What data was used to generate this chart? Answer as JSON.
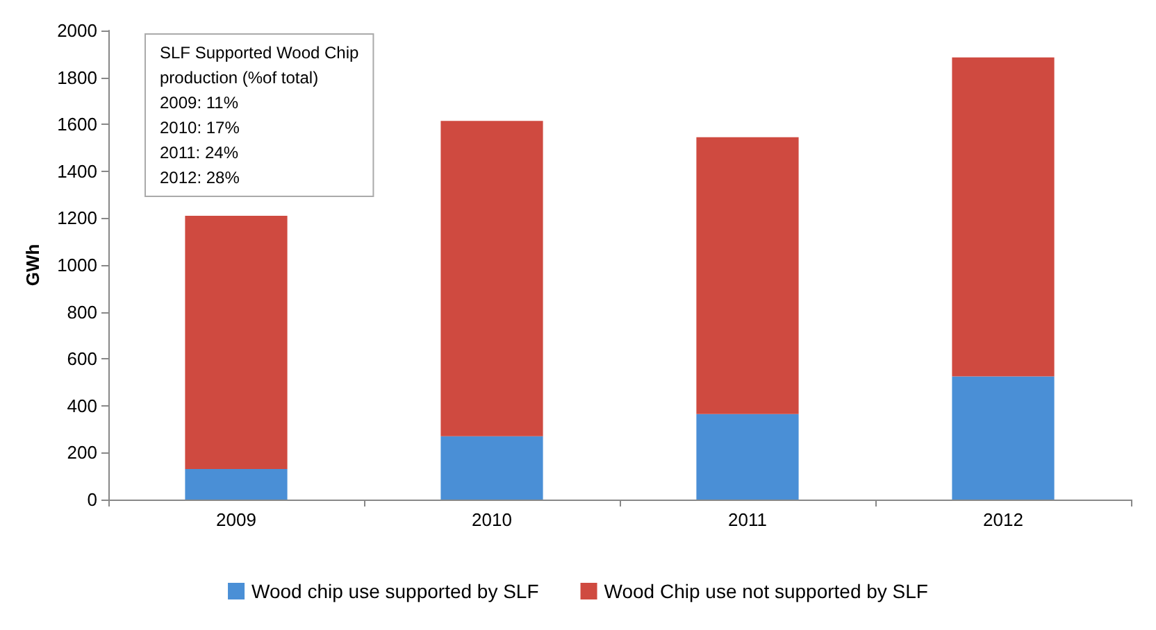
{
  "chart_data": {
    "type": "bar",
    "stacked": true,
    "ylabel": "GWh",
    "categories": [
      "2009",
      "2010",
      "2011",
      "2012"
    ],
    "series": [
      {
        "name": "Wood chip use supported by SLF",
        "color": "#4a8fd6",
        "values": [
          130,
          270,
          365,
          525
        ]
      },
      {
        "name": "Wood Chip use not supported by SLF",
        "color": "#cf4a40",
        "values": [
          1080,
          1345,
          1180,
          1360
        ]
      }
    ],
    "ylim": [
      0,
      2000
    ],
    "yticks": [
      0,
      200,
      400,
      600,
      800,
      1000,
      1200,
      1400,
      1600,
      1800,
      2000
    ],
    "grid": false,
    "legend": "bottom",
    "annotations": [
      "SLF Supported Wood Chip\nproduction (%of total)",
      "2009: 11%",
      "2010: 17%",
      "2011: 24%",
      "2012: 28%"
    ]
  }
}
